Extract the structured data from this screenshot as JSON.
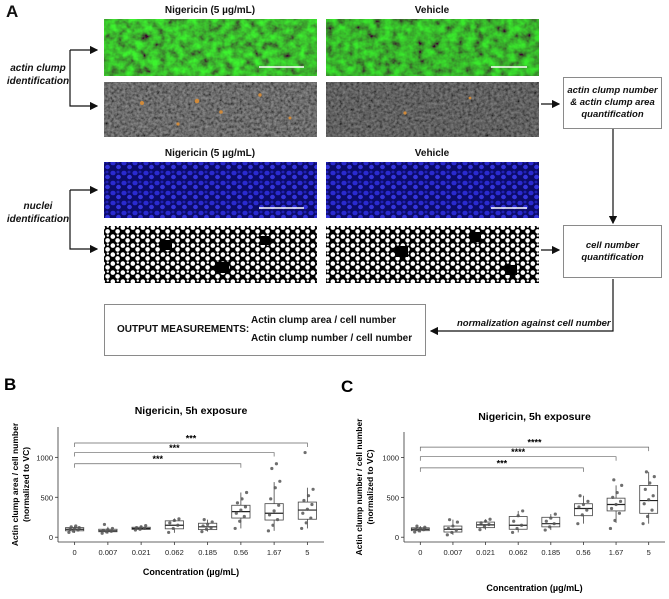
{
  "panel_a": {
    "letter": "A",
    "col_left_title": "Nigericin (5 µg/mL)",
    "col_right_title": "Vehicle",
    "col_left_title_2": "Nigericin (5 µg/mL)",
    "col_right_title_2": "Vehicle",
    "actin_label": "actin clump identification",
    "nuclei_label": "nuclei identification",
    "box_actin_quant": "actin clump number & actin clump area quantification",
    "box_cell_quant": "cell number quantification",
    "output_title": "OUTPUT MEASUREMENTS:",
    "output_line1": "Actin clump area / cell number",
    "output_line2": "Actin clump number / cell number",
    "normalization_label": "normalization against cell number",
    "colors": {
      "actin": "#2f8a2a",
      "nuclei": "#2222bb",
      "mask_bg": "#000000",
      "box_border": "#8a8a8a"
    }
  },
  "chart_data": [
    {
      "type": "box",
      "panel": "B",
      "title": "Nigericin, 5h exposure",
      "xlabel": "Concentration (µg/mL)",
      "ylabel": "Actin clump area / cell number",
      "ylabel2": "(normalized to VC)",
      "categories": [
        "0",
        "0.007",
        "0.021",
        "0.062",
        "0.185",
        "0.56",
        "1.67",
        "5"
      ],
      "ylim": [
        -60,
        1380
      ],
      "yticks": [
        0,
        500,
        1000
      ],
      "boxes": [
        {
          "q1": 80,
          "median": 100,
          "q3": 120,
          "low": 55,
          "high": 140
        },
        {
          "q1": 68,
          "median": 80,
          "q3": 100,
          "low": 45,
          "high": 130
        },
        {
          "q1": 98,
          "median": 110,
          "q3": 125,
          "low": 88,
          "high": 148
        },
        {
          "q1": 105,
          "median": 150,
          "q3": 205,
          "low": 55,
          "high": 235
        },
        {
          "q1": 95,
          "median": 130,
          "q3": 175,
          "low": 70,
          "high": 220
        },
        {
          "q1": 240,
          "median": 320,
          "q3": 400,
          "low": 110,
          "high": 560
        },
        {
          "q1": 215,
          "median": 300,
          "q3": 420,
          "low": 80,
          "high": 690
        },
        {
          "q1": 225,
          "median": 340,
          "q3": 440,
          "low": 110,
          "high": 620
        }
      ],
      "points": [
        [
          60,
          75,
          90,
          100,
          110,
          120,
          130,
          140
        ],
        [
          50,
          65,
          75,
          85,
          95,
          110,
          160
        ],
        [
          90,
          100,
          110,
          120,
          130,
          145
        ],
        [
          60,
          110,
          150,
          180,
          210,
          230
        ],
        [
          70,
          100,
          120,
          140,
          160,
          190,
          220
        ],
        [
          110,
          200,
          260,
          300,
          340,
          380,
          430,
          480,
          560
        ],
        [
          80,
          150,
          220,
          280,
          330,
          400,
          480,
          620,
          700,
          860,
          920
        ],
        [
          110,
          180,
          240,
          300,
          350,
          410,
          460,
          520,
          600,
          1060
        ]
      ],
      "brackets": [
        {
          "from": "0",
          "to": "5",
          "label": "***",
          "y": 1180
        },
        {
          "from": "0",
          "to": "1.67",
          "label": "***",
          "y": 1060
        },
        {
          "from": "0",
          "to": "0.56",
          "label": "***",
          "y": 920
        }
      ]
    },
    {
      "type": "box",
      "panel": "C",
      "title": "Nigericin, 5h exposure",
      "xlabel": "Concentration (µg/mL)",
      "ylabel": "Actin clump number / cell number",
      "ylabel2": "(normalized to VC)",
      "categories": [
        "0",
        "0.007",
        "0.021",
        "0.062",
        "0.185",
        "0.56",
        "1.67",
        "5"
      ],
      "ylim": [
        -60,
        1320
      ],
      "yticks": [
        0,
        500,
        1000
      ],
      "boxes": [
        {
          "q1": 82,
          "median": 100,
          "q3": 118,
          "low": 60,
          "high": 140
        },
        {
          "q1": 65,
          "median": 100,
          "q3": 140,
          "low": 30,
          "high": 220
        },
        {
          "q1": 120,
          "median": 155,
          "q3": 190,
          "low": 95,
          "high": 225
        },
        {
          "q1": 100,
          "median": 150,
          "q3": 260,
          "low": 60,
          "high": 330
        },
        {
          "q1": 130,
          "median": 170,
          "q3": 250,
          "low": 90,
          "high": 290
        },
        {
          "q1": 270,
          "median": 360,
          "q3": 420,
          "low": 170,
          "high": 520
        },
        {
          "q1": 330,
          "median": 410,
          "q3": 490,
          "low": 180,
          "high": 650
        },
        {
          "q1": 300,
          "median": 460,
          "q3": 650,
          "low": 170,
          "high": 820
        }
      ],
      "points": [
        [
          65,
          80,
          95,
          100,
          110,
          125,
          140
        ],
        [
          30,
          60,
          90,
          110,
          140,
          190,
          220
        ],
        [
          95,
          130,
          160,
          180,
          200,
          225
        ],
        [
          60,
          110,
          150,
          200,
          270,
          330
        ],
        [
          90,
          130,
          170,
          200,
          240,
          290
        ],
        [
          170,
          280,
          340,
          380,
          410,
          450,
          520
        ],
        [
          110,
          210,
          300,
          360,
          410,
          450,
          500,
          560,
          650,
          720
        ],
        [
          170,
          260,
          340,
          420,
          470,
          520,
          600,
          680,
          760,
          820
        ]
      ],
      "brackets": [
        {
          "from": "0",
          "to": "5",
          "label": "****",
          "y": 1130
        },
        {
          "from": "0",
          "to": "1.67",
          "label": "****",
          "y": 1010
        },
        {
          "from": "0",
          "to": "0.56",
          "label": "***",
          "y": 870
        }
      ]
    }
  ]
}
